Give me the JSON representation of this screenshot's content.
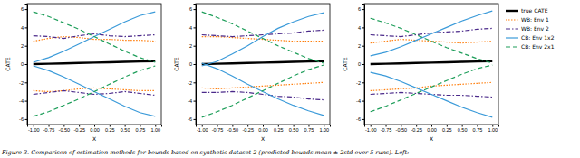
{
  "caption": "Figure 3. Comparison of estimation methods for bounds based on synthetic dataset 2 (predicted bounds mean ± 2std over 5 runs). Left:",
  "chart_data": [
    {
      "type": "line",
      "xlabel": "X",
      "ylabel": "CATE",
      "x": [
        -1,
        -0.75,
        -0.5,
        -0.25,
        0,
        0.25,
        0.5,
        0.75,
        1
      ],
      "xlim": [
        -1.1,
        1.1
      ],
      "xticks": [
        {
          "value": -1,
          "label": "-1.00"
        },
        {
          "value": -0.75,
          "label": "-0.75"
        },
        {
          "value": -0.5,
          "label": "-0.50"
        },
        {
          "value": -0.25,
          "label": "-0.25"
        },
        {
          "value": 0,
          "label": "0.00"
        },
        {
          "value": 0.25,
          "label": "0.25"
        },
        {
          "value": 0.5,
          "label": "0.50"
        },
        {
          "value": 0.75,
          "label": "0.75"
        },
        {
          "value": 1,
          "label": "1.00"
        }
      ],
      "ylim": [
        -6.6,
        6.6
      ],
      "yticks": [
        -6,
        -4,
        -2,
        0,
        2,
        4,
        6
      ],
      "series": [
        {
          "name": "true CATE",
          "color": "#000000",
          "line_style": "solid",
          "values": [
            0,
            0.04,
            0.08,
            0.12,
            0.16,
            0.2,
            0.24,
            0.28,
            0.32
          ]
        },
        {
          "name": "WB: Env 1",
          "color": "#ff7f0e",
          "line_style": "dotted",
          "upper": [
            2.5,
            2.8,
            3.0,
            2.9,
            2.7,
            2.7,
            2.6,
            2.6,
            2.5
          ],
          "lower": [
            -2.9,
            -3.0,
            -2.9,
            -2.7,
            -2.6,
            -2.7,
            -2.8,
            -2.9,
            -2.9
          ]
        },
        {
          "name": "WB: Env 2",
          "color": "#4b2a8a",
          "line_style": "dashdot",
          "upper": [
            3.1,
            3.0,
            2.8,
            3.1,
            3.3,
            3.1,
            3.0,
            3.1,
            3.2
          ],
          "lower": [
            -3.3,
            -3.1,
            -2.9,
            -3.1,
            -3.3,
            -3.2,
            -3.0,
            -3.2,
            -3.4
          ]
        },
        {
          "name": "CB: Env 1x2",
          "color": "#3a9ad9",
          "line_style": "solid",
          "upper": [
            0.2,
            0.7,
            1.4,
            2.2,
            3.0,
            3.8,
            4.6,
            5.3,
            5.7
          ],
          "lower": [
            -0.2,
            -0.7,
            -1.4,
            -2.2,
            -3.0,
            -3.8,
            -4.6,
            -5.3,
            -5.7
          ]
        },
        {
          "name": "CB: Env 2x1",
          "color": "#1e9e5a",
          "line_style": "dashed",
          "upper": [
            5.7,
            5.2,
            4.5,
            3.8,
            3.0,
            2.2,
            1.4,
            0.7,
            0.2
          ],
          "lower": [
            -5.7,
            -5.2,
            -4.5,
            -3.8,
            -3.0,
            -2.2,
            -1.4,
            -0.7,
            -0.2
          ]
        }
      ]
    },
    {
      "type": "line",
      "xlabel": "X",
      "ylabel": "CATE",
      "x": [
        -1,
        -0.75,
        -0.5,
        -0.25,
        0,
        0.25,
        0.5,
        0.75,
        1
      ],
      "xlim": [
        -1.1,
        1.1
      ],
      "xticks": [
        {
          "value": -1,
          "label": "-1.00"
        },
        {
          "value": -0.75,
          "label": "-0.75"
        },
        {
          "value": -0.5,
          "label": "-0.50"
        },
        {
          "value": -0.25,
          "label": "-0.25"
        },
        {
          "value": 0,
          "label": "0.00"
        },
        {
          "value": 0.25,
          "label": "0.25"
        },
        {
          "value": 0.5,
          "label": "0.50"
        },
        {
          "value": 0.75,
          "label": "0.75"
        },
        {
          "value": 1,
          "label": "1.00"
        }
      ],
      "ylim": [
        -6.6,
        6.6
      ],
      "yticks": [
        -6,
        -4,
        -2,
        0,
        2,
        4,
        6
      ],
      "series": [
        {
          "name": "true CATE",
          "color": "#000000",
          "line_style": "solid",
          "values": [
            0,
            0.04,
            0.08,
            0.12,
            0.16,
            0.2,
            0.24,
            0.28,
            0.32
          ]
        },
        {
          "name": "WB: Env 1",
          "color": "#ff7f0e",
          "line_style": "dotted",
          "upper": [
            3.0,
            3.0,
            2.9,
            2.8,
            2.7,
            2.6,
            2.5,
            2.5,
            2.5
          ],
          "lower": [
            -2.6,
            -2.7,
            -2.6,
            -2.5,
            -2.4,
            -2.3,
            -2.2,
            -2.1,
            -2.0
          ]
        },
        {
          "name": "WB: Env 2",
          "color": "#4b2a8a",
          "line_style": "dashdot",
          "upper": [
            3.2,
            3.1,
            3.0,
            3.1,
            3.2,
            3.3,
            3.4,
            3.6,
            3.7
          ],
          "lower": [
            -3.1,
            -3.1,
            -3.0,
            -3.1,
            -3.3,
            -3.5,
            -3.6,
            -3.8,
            -3.9
          ]
        },
        {
          "name": "CB: Env 1x2",
          "color": "#3a9ad9",
          "line_style": "solid",
          "upper": [
            -0.2,
            0.3,
            1.1,
            2.0,
            3.0,
            3.9,
            4.6,
            5.2,
            5.6
          ],
          "lower": [
            0.1,
            -0.5,
            -1.3,
            -2.2,
            -3.0,
            -3.8,
            -4.5,
            -5.1,
            -5.6
          ]
        },
        {
          "name": "CB: Env 2x1",
          "color": "#1e9e5a",
          "line_style": "dashed",
          "upper": [
            5.7,
            5.1,
            4.4,
            3.6,
            2.8,
            2.0,
            1.3,
            0.6,
            0.1
          ],
          "lower": [
            -5.8,
            -5.2,
            -4.5,
            -3.7,
            -2.9,
            -2.1,
            -1.3,
            -0.6,
            -0.1
          ]
        }
      ]
    },
    {
      "type": "line",
      "xlabel": "X",
      "ylabel": "CATE",
      "legend": "right",
      "x": [
        -1,
        -0.75,
        -0.5,
        -0.25,
        0,
        0.25,
        0.5,
        0.75,
        1
      ],
      "xlim": [
        -1.1,
        1.1
      ],
      "xticks": [
        {
          "value": -1,
          "label": "-1.00"
        },
        {
          "value": -0.75,
          "label": "-0.75"
        },
        {
          "value": -0.5,
          "label": "-0.50"
        },
        {
          "value": -0.25,
          "label": "-0.25"
        },
        {
          "value": 0,
          "label": "0.00"
        },
        {
          "value": 0.25,
          "label": "0.25"
        },
        {
          "value": 0.5,
          "label": "0.50"
        },
        {
          "value": 0.75,
          "label": "0.75"
        },
        {
          "value": 1,
          "label": "1.00"
        }
      ],
      "ylim": [
        -6.6,
        6.6
      ],
      "yticks": [
        -6,
        -4,
        -2,
        0,
        2,
        4,
        6
      ],
      "series": [
        {
          "name": "true CATE",
          "color": "#000000",
          "line_style": "solid",
          "values": [
            0,
            0.04,
            0.08,
            0.12,
            0.16,
            0.2,
            0.24,
            0.28,
            0.32
          ]
        },
        {
          "name": "WB: Env 1",
          "color": "#ff7f0e",
          "line_style": "dotted",
          "upper": [
            2.3,
            2.5,
            2.7,
            2.6,
            2.5,
            2.4,
            2.3,
            2.4,
            2.5
          ],
          "lower": [
            -2.9,
            -2.8,
            -2.7,
            -2.6,
            -2.4,
            -2.3,
            -2.2,
            -2.1,
            -2.0
          ]
        },
        {
          "name": "WB: Env 2",
          "color": "#4b2a8a",
          "line_style": "dashdot",
          "upper": [
            3.2,
            3.1,
            3.0,
            3.2,
            3.4,
            3.5,
            3.6,
            3.8,
            3.9
          ],
          "lower": [
            -3.3,
            -3.2,
            -3.1,
            -3.2,
            -3.3,
            -3.4,
            -3.4,
            -3.5,
            -3.6
          ]
        },
        {
          "name": "CB: Env 1x2",
          "color": "#3a9ad9",
          "line_style": "solid",
          "upper": [
            0.9,
            1.3,
            1.9,
            2.6,
            3.3,
            4.0,
            4.7,
            5.3,
            5.8
          ],
          "lower": [
            -0.9,
            -1.3,
            -1.9,
            -2.6,
            -3.3,
            -4.0,
            -4.7,
            -5.3,
            -5.8
          ]
        },
        {
          "name": "CB: Env 2x1",
          "color": "#1e9e5a",
          "line_style": "dashed",
          "upper": [
            5.0,
            4.5,
            3.9,
            3.2,
            2.5,
            1.8,
            1.2,
            0.6,
            0.1
          ],
          "lower": [
            -5.2,
            -4.6,
            -3.9,
            -3.2,
            -2.5,
            -1.8,
            -1.1,
            -0.5,
            -0.1
          ]
        }
      ]
    }
  ]
}
